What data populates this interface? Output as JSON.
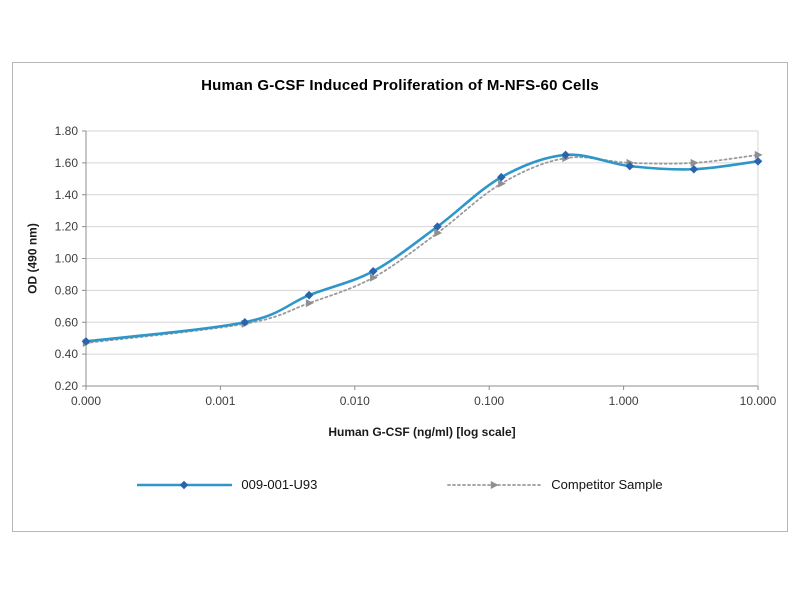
{
  "chart_data": {
    "type": "line",
    "title": "Human G-CSF Induced Proliferation of M-NFS-60 Cells",
    "xlabel": "Human G-CSF (ng/ml) [log scale]",
    "ylabel": "OD (490 nm)",
    "x_scale": "log",
    "grid": "horizontal",
    "legend_position": "bottom",
    "ylim": [
      0.2,
      1.8
    ],
    "y_ticks": [
      0.2,
      0.4,
      0.6,
      0.8,
      1.0,
      1.2,
      1.4,
      1.6,
      1.8
    ],
    "y_tick_labels": [
      "0.20",
      "0.40",
      "0.60",
      "0.80",
      "1.00",
      "1.20",
      "1.40",
      "1.60",
      "1.80"
    ],
    "x_tick_values": [
      0.0001,
      0.001,
      0.01,
      0.1,
      1,
      10
    ],
    "x_tick_labels": [
      "0.000",
      "0.001",
      "0.010",
      "0.100",
      "1.000",
      "10.000"
    ],
    "x": [
      0,
      0.00152,
      0.00457,
      0.0137,
      0.0412,
      0.123,
      0.37,
      1.111,
      3.333,
      10
    ],
    "series": [
      {
        "name": "009-001-U93",
        "color": "#2f97c8",
        "marker_color": "#2a64ad",
        "marker": "diamond",
        "line_style": "solid",
        "values": [
          0.48,
          0.6,
          0.77,
          0.92,
          1.2,
          1.51,
          1.65,
          1.58,
          1.56,
          1.61
        ]
      },
      {
        "name": "Competitor Sample",
        "color": "#9a9a9a",
        "marker_color": "#8f8f8f",
        "marker": "triangle",
        "line_style": "dotted",
        "values": [
          0.47,
          0.59,
          0.72,
          0.88,
          1.16,
          1.47,
          1.63,
          1.6,
          1.6,
          1.65
        ]
      }
    ]
  },
  "colors": {
    "grid": "#d6d6d6",
    "axis": "#8c8c8c",
    "tick_text": "#3d3d3d",
    "frame_border": "#b7b7b7"
  }
}
